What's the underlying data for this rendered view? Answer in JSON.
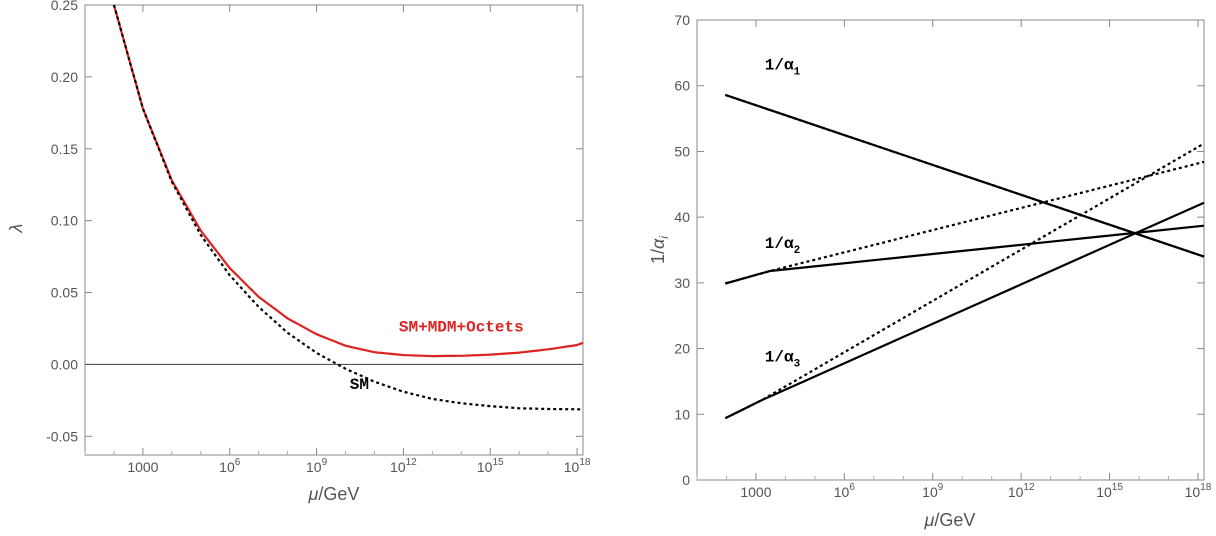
{
  "chart_data": [
    {
      "type": "line",
      "x_scale": "log10",
      "xlim": [
        10,
        1.6e+18
      ],
      "ylim": [
        -0.063,
        0.25
      ],
      "xticks": [
        {
          "value": 1000,
          "base": "1000",
          "exp": ""
        },
        {
          "value": 1000000.0,
          "base": "10",
          "exp": "6"
        },
        {
          "value": 1000000000.0,
          "base": "10",
          "exp": "9"
        },
        {
          "value": 1000000000000.0,
          "base": "10",
          "exp": "12"
        },
        {
          "value": 1000000000000000.0,
          "base": "10",
          "exp": "15"
        },
        {
          "value": 1e+18,
          "base": "10",
          "exp": "18"
        }
      ],
      "yticks": [
        "-0.05",
        "0.00",
        "0.05",
        "0.10",
        "0.15",
        "0.20",
        "0.25"
      ],
      "ytick_values": [
        -0.05,
        0,
        0.05,
        0.1,
        0.15,
        0.2,
        0.25
      ],
      "xlabel_italic": "μ",
      "xlabel_rest": "/GeV",
      "ylabel": "λ",
      "reference_line": {
        "y": 0,
        "color": "#555555"
      },
      "series": [
        {
          "name": "SM+MDM+Octets",
          "color": "#dd2222",
          "style": "solid",
          "x": [
            100,
            1000,
            10000,
            100000,
            1000000,
            10000000,
            100000000,
            1000000000,
            10000000000,
            100000000000,
            1000000000000,
            10000000000000,
            100000000000000,
            1000000000000000,
            10000000000000000,
            100000000000000000,
            1000000000000000000,
            1.6e+18
          ],
          "y": [
            0.25,
            0.178,
            0.128,
            0.093,
            0.067,
            0.047,
            0.032,
            0.021,
            0.013,
            0.0085,
            0.0065,
            0.0058,
            0.006,
            0.0068,
            0.0082,
            0.0105,
            0.0135,
            0.015
          ]
        },
        {
          "name": "SM",
          "color": "#000000",
          "style": "dotted",
          "x": [
            100,
            1000,
            10000,
            100000,
            1000000,
            10000000,
            100000000,
            1000000000,
            10000000000,
            100000000000,
            1000000000000,
            10000000000000,
            100000000000000,
            1000000000000000,
            10000000000000000,
            100000000000000000,
            1000000000000000000,
            1.6e+18
          ],
          "y": [
            0.25,
            0.178,
            0.127,
            0.09,
            0.062,
            0.04,
            0.022,
            0.008,
            -0.003,
            -0.012,
            -0.019,
            -0.024,
            -0.027,
            -0.029,
            -0.0305,
            -0.031,
            -0.0312,
            -0.0313
          ]
        }
      ],
      "labels": [
        {
          "text": "SM+MDM+Octets",
          "x": 100000000000000.0,
          "y": 0.023,
          "color": "#dd2222"
        },
        {
          "text": "SM",
          "x": 30000000000.0,
          "y": -0.017,
          "color": "#000000"
        }
      ]
    },
    {
      "type": "line",
      "x_scale": "log10",
      "xlim": [
        10,
        1.6e+18
      ],
      "ylim": [
        0,
        70
      ],
      "xticks": [
        {
          "value": 1000,
          "base": "1000",
          "exp": ""
        },
        {
          "value": 1000000.0,
          "base": "10",
          "exp": "6"
        },
        {
          "value": 1000000000.0,
          "base": "10",
          "exp": "9"
        },
        {
          "value": 1000000000000.0,
          "base": "10",
          "exp": "12"
        },
        {
          "value": 1000000000000000.0,
          "base": "10",
          "exp": "15"
        },
        {
          "value": 1e+18,
          "base": "10",
          "exp": "18"
        }
      ],
      "yticks": [
        "0",
        "10",
        "20",
        "30",
        "40",
        "50",
        "60",
        "70"
      ],
      "ytick_values": [
        0,
        10,
        20,
        30,
        40,
        50,
        60,
        70
      ],
      "xlabel_italic": "μ",
      "xlabel_rest": "/GeV",
      "ylabel_prefix": "1/",
      "ylabel_italic": "α",
      "ylabel_sub": "i",
      "series": [
        {
          "color": "#000000",
          "style": "solid",
          "x": [
            91,
            1.6e+18
          ],
          "y": [
            58.6,
            34.0
          ]
        },
        {
          "color": "#000000",
          "style": "dotted",
          "x": [
            91,
            1.6e+18
          ],
          "y": [
            58.6,
            34.0
          ]
        },
        {
          "color": "#000000",
          "style": "solid",
          "x": [
            91,
            3000,
            1.6e+18
          ],
          "y": [
            29.9,
            31.8,
            38.7
          ]
        },
        {
          "color": "#000000",
          "style": "dotted",
          "x": [
            91,
            3000,
            1.6e+18
          ],
          "y": [
            29.9,
            31.8,
            48.4
          ]
        },
        {
          "color": "#000000",
          "style": "solid",
          "x": [
            91,
            1500,
            1.6e+18
          ],
          "y": [
            9.4,
            12.1,
            42.2
          ]
        },
        {
          "color": "#000000",
          "style": "dotted",
          "x": [
            91,
            1500,
            1.6e+18
          ],
          "y": [
            9.4,
            12.1,
            51.2
          ]
        }
      ],
      "labels": [
        {
          "prefix": "1/α",
          "sub": "1",
          "x": 2000,
          "y": 62.5
        },
        {
          "prefix": "1/α",
          "sub": "2",
          "x": 2000,
          "y": 35.3
        },
        {
          "prefix": "1/α",
          "sub": "3",
          "x": 2000,
          "y": 18.0
        }
      ]
    }
  ]
}
